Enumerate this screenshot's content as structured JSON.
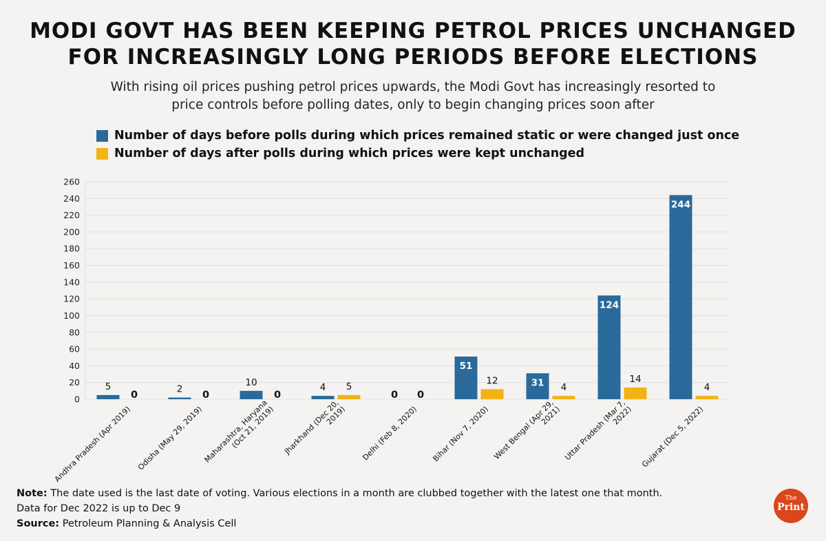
{
  "title_line1": "MODI GOVT HAS BEEN KEEPING PETROL PRICES UNCHANGED",
  "title_line2": "FOR INCREASINGLY LONG PERIODS BEFORE ELECTIONS",
  "subtitle_line1": "With rising oil prices pushing petrol prices upwards, the Modi Govt has increasingly resorted to",
  "subtitle_line2": "price controls before polling dates, only to begin changing prices soon after",
  "colors": {
    "before": "#2a6a9b",
    "after": "#f2b316",
    "grid": "#e4e4e4",
    "background": "#f4f3f1"
  },
  "notes": {
    "note_label": "Note:",
    "note_text": " The date used is the last date of voting. Various elections in a month are clubbed together with the latest one that month.",
    "data_text": "Data for Dec 2022 is up to Dec 9",
    "source_label": "Source:",
    "source_text": " Petroleum Planning & Analysis Cell"
  },
  "logo": {
    "the": "The",
    "print": "Print"
  },
  "chart_data": {
    "type": "bar",
    "title": "MODI GOVT HAS BEEN KEEPING PETROL PRICES UNCHANGED FOR INCREASINGLY LONG PERIODS BEFORE ELECTIONS",
    "xlabel": "",
    "ylabel": "",
    "ylim": [
      0,
      260
    ],
    "yticks": [
      0,
      20,
      40,
      60,
      80,
      100,
      120,
      140,
      160,
      180,
      200,
      220,
      240,
      260
    ],
    "grid": true,
    "legend_position": "top-left",
    "categories": [
      [
        "Andhra Pradesh (Apr 2019)"
      ],
      [
        "Odisha (May 29, 2019)"
      ],
      [
        "Maharashtra, Haryana",
        "(Oct 21, 2019)"
      ],
      [
        "Jharkhand (Dec 20,",
        "2019)"
      ],
      [
        "Delhi (Feb 8, 2020)"
      ],
      [
        "Bihar (Nov 7, 2020)"
      ],
      [
        "West Bengal (Apr 29,",
        "2021)"
      ],
      [
        "Uttar Pradesh (Mar 7,",
        "2022)"
      ],
      [
        "Gujarat (Dec 5, 2022)"
      ]
    ],
    "series": [
      {
        "name": "Number of days before polls during which prices remained static or were changed just once",
        "values": [
          5,
          2,
          10,
          4,
          0,
          51,
          31,
          124,
          244
        ]
      },
      {
        "name": "Number of days after polls during which prices were kept unchanged",
        "values": [
          0,
          0,
          0,
          5,
          0,
          12,
          4,
          14,
          4
        ]
      }
    ]
  }
}
